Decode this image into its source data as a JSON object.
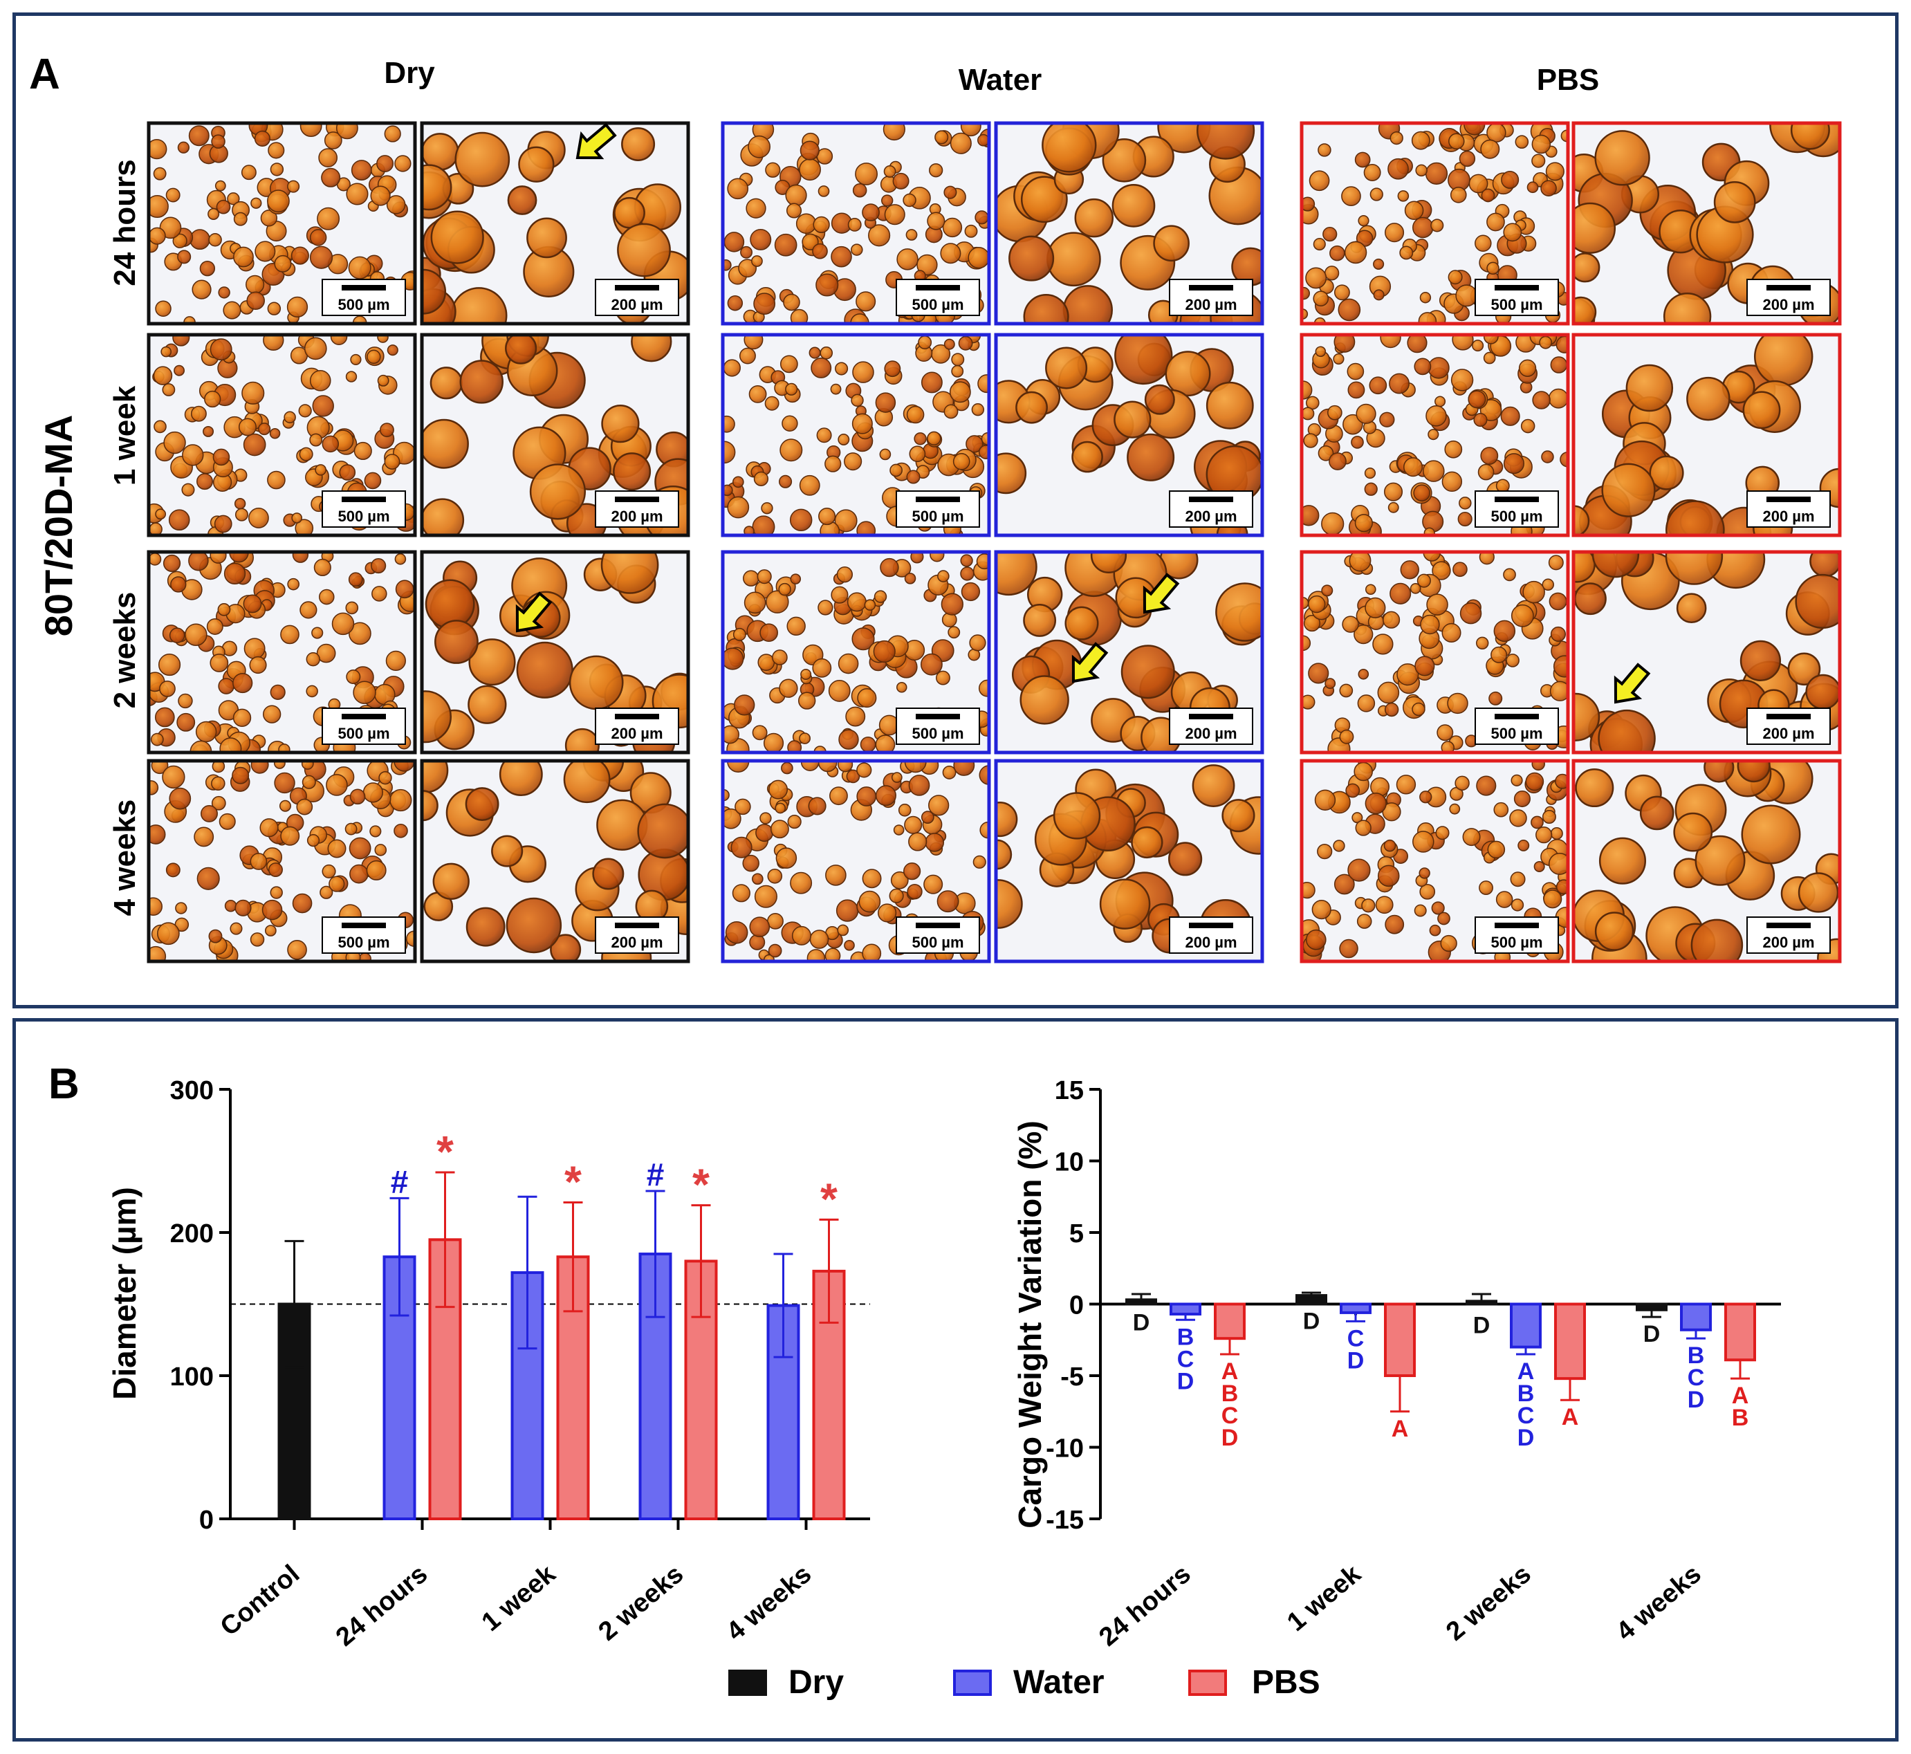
{
  "panelA": {
    "label": "A",
    "columns": [
      "Dry",
      "Water",
      "PBS"
    ],
    "rows": [
      "24 hours",
      "1 week",
      "2 weeks",
      "4 weeks"
    ],
    "side_label": "80T/20D-MA",
    "scale_low": "500 µm",
    "scale_high": "200 µm",
    "colors": {
      "Dry": "#111111",
      "Water": "#2323d8",
      "PBS": "#e01e1e"
    }
  },
  "panelB": {
    "label": "B"
  },
  "legend": [
    {
      "name": "Dry",
      "fill": "#111111",
      "stroke": "#111111"
    },
    {
      "name": "Water",
      "fill": "#6b6bf2",
      "stroke": "#2222dd"
    },
    {
      "name": "PBS",
      "fill": "#f27b7b",
      "stroke": "#e01e1e"
    }
  ],
  "chart_data": [
    {
      "type": "bar",
      "ylabel": "Diameter (µm)",
      "ylim": [
        0,
        300
      ],
      "yticks": [
        0,
        100,
        200,
        300
      ],
      "reference_line": 150,
      "groups": [
        {
          "label": "Control",
          "bars": [
            {
              "series": "Dry",
              "value": 150,
              "err": 44,
              "mark": ""
            }
          ]
        },
        {
          "label": "24 hours",
          "bars": [
            {
              "series": "Water",
              "value": 183,
              "err": 41,
              "mark": "#"
            },
            {
              "series": "PBS",
              "value": 195,
              "err": 47,
              "mark": "*"
            }
          ]
        },
        {
          "label": "1 week",
          "bars": [
            {
              "series": "Water",
              "value": 172,
              "err": 53,
              "mark": ""
            },
            {
              "series": "PBS",
              "value": 183,
              "err": 38,
              "mark": "*"
            }
          ]
        },
        {
          "label": "2 weeks",
          "bars": [
            {
              "series": "Water",
              "value": 185,
              "err": 44,
              "mark": "#"
            },
            {
              "series": "PBS",
              "value": 180,
              "err": 39,
              "mark": "*"
            }
          ]
        },
        {
          "label": "4 weeks",
          "bars": [
            {
              "series": "Water",
              "value": 149,
              "err": 36,
              "mark": ""
            },
            {
              "series": "PBS",
              "value": 173,
              "err": 36,
              "mark": "*"
            }
          ]
        }
      ]
    },
    {
      "type": "bar",
      "ylabel": "Cargo Weight Variation (%)",
      "ylim": [
        -15,
        15
      ],
      "yticks": [
        -15,
        -10,
        -5,
        0,
        5,
        10,
        15
      ],
      "groups": [
        {
          "label": "24 hours",
          "bars": [
            {
              "series": "Dry",
              "value": 0.3,
              "err": 0.4,
              "letters": [
                "D"
              ]
            },
            {
              "series": "Water",
              "value": -0.7,
              "err": 0.4,
              "letters": [
                "B",
                "C",
                "D"
              ]
            },
            {
              "series": "PBS",
              "value": -2.4,
              "err": 1.1,
              "letters": [
                "A",
                "B",
                "C",
                "D"
              ]
            }
          ]
        },
        {
          "label": "1 week",
          "bars": [
            {
              "series": "Dry",
              "value": 0.6,
              "err": 0.2,
              "letters": [
                "D"
              ]
            },
            {
              "series": "Water",
              "value": -0.6,
              "err": 0.6,
              "letters": [
                "C",
                "D"
              ]
            },
            {
              "series": "PBS",
              "value": -5.0,
              "err": 2.5,
              "letters": [
                "A"
              ]
            }
          ]
        },
        {
          "label": "2 weeks",
          "bars": [
            {
              "series": "Dry",
              "value": 0.2,
              "err": 0.5,
              "letters": [
                "D"
              ]
            },
            {
              "series": "Water",
              "value": -3.0,
              "err": 0.5,
              "letters": [
                "A",
                "B",
                "C",
                "D"
              ]
            },
            {
              "series": "PBS",
              "value": -5.2,
              "err": 1.5,
              "letters": [
                "A"
              ]
            }
          ]
        },
        {
          "label": "4 weeks",
          "bars": [
            {
              "series": "Dry",
              "value": -0.4,
              "err": 0.5,
              "letters": [
                "D"
              ]
            },
            {
              "series": "Water",
              "value": -1.8,
              "err": 0.6,
              "letters": [
                "B",
                "C",
                "D"
              ]
            },
            {
              "series": "PBS",
              "value": -3.9,
              "err": 1.3,
              "letters": [
                "A",
                "B"
              ]
            }
          ]
        }
      ]
    }
  ]
}
